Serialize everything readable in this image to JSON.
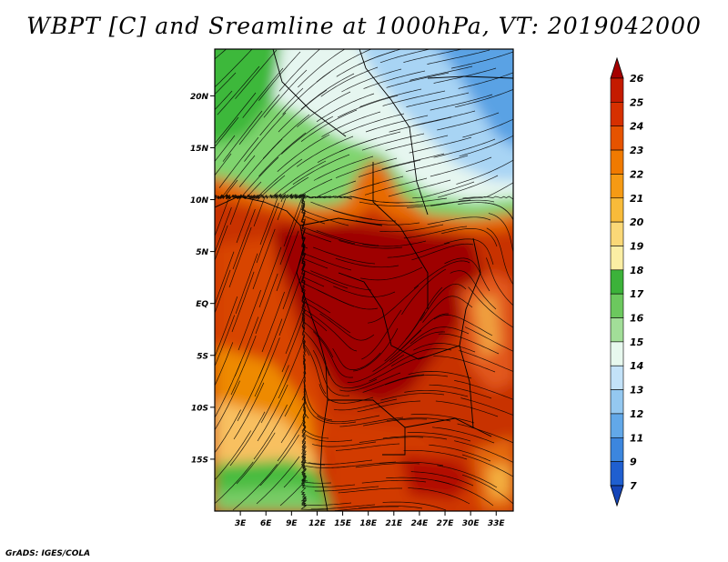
{
  "title": "WBPT [C] and Sreamline at 1000hPa, VT: 2019042000",
  "footer": "GrADS: IGES/COLA",
  "map": {
    "lat_labels": [
      "20N",
      "15N",
      "10N",
      "5N",
      "EQ",
      "5S",
      "10S",
      "15S"
    ],
    "lat_values": [
      20,
      15,
      10,
      5,
      0,
      -5,
      -10,
      -15
    ],
    "lon_labels": [
      "3E",
      "6E",
      "9E",
      "12E",
      "15E",
      "18E",
      "21E",
      "24E",
      "27E",
      "30E",
      "33E"
    ],
    "lon_values": [
      3,
      6,
      9,
      12,
      15,
      18,
      21,
      24,
      27,
      30,
      33
    ],
    "lat_range": [
      -20,
      24.5
    ],
    "lon_range": [
      0,
      35
    ]
  },
  "colorbar": {
    "labels": [
      "26",
      "25",
      "24",
      "23",
      "22",
      "21",
      "20",
      "19",
      "18",
      "17",
      "16",
      "15",
      "14",
      "13",
      "12",
      "11",
      "9",
      "7"
    ],
    "colors": [
      "#a50000",
      "#c41a00",
      "#d63000",
      "#e65300",
      "#f07a00",
      "#f59a14",
      "#f8bb3a",
      "#fad877",
      "#fbeea4",
      "#3cb23a",
      "#6cc85e",
      "#a2de98",
      "#e7f8ee",
      "#c3e2f8",
      "#94c8f0",
      "#62a8e8",
      "#3c86de",
      "#1f5fd0",
      "#1545b8"
    ]
  }
}
